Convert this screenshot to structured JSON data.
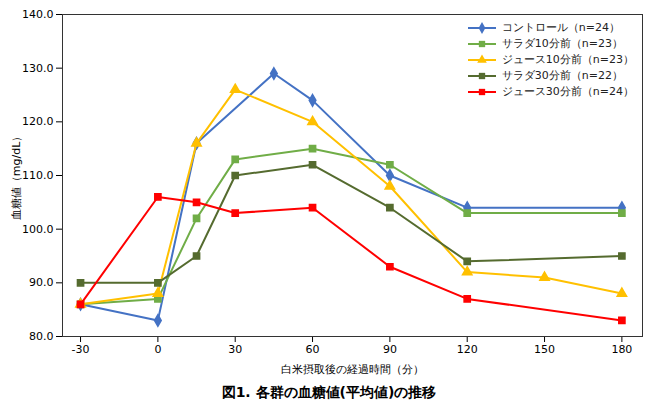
{
  "chart_data": {
    "type": "line",
    "title": "図1. 各群の血糖値(平均値)の推移",
    "xlabel": "白米摂取後の経過時間（分）",
    "ylabel": "血糖値（mg/dL）",
    "series": [
      {
        "name": "コントロール（n=24）",
        "color": "#4472C4",
        "marker": "diamond",
        "x": [
          -30,
          0,
          15,
          45,
          60,
          90,
          120,
          180
        ],
        "values": [
          86,
          83,
          116,
          129,
          124,
          110,
          104,
          104
        ]
      },
      {
        "name": "サラダ10分前（n=23）",
        "color": "#70AD47",
        "marker": "square",
        "x": [
          -30,
          0,
          15,
          30,
          60,
          90,
          120,
          180
        ],
        "values": [
          86,
          87,
          102,
          113,
          115,
          112,
          103,
          103
        ]
      },
      {
        "name": "ジュース10分前（n=23）",
        "color": "#FFC000",
        "marker": "triangle",
        "x": [
          -30,
          0,
          15,
          30,
          60,
          90,
          120,
          150,
          180
        ],
        "values": [
          86,
          88,
          116,
          126,
          120,
          108,
          92,
          91,
          88
        ]
      },
      {
        "name": "サラダ30分前（n=22）",
        "color": "#556B2F",
        "marker": "square",
        "x": [
          -30,
          0,
          15,
          30,
          60,
          90,
          120,
          180
        ],
        "values": [
          90,
          90,
          95,
          110,
          112,
          104,
          94,
          95
        ]
      },
      {
        "name": "ジュース30分前（n=24）",
        "color": "#FF0000",
        "marker": "square",
        "x": [
          -30,
          0,
          15,
          30,
          60,
          90,
          120,
          180
        ],
        "values": [
          86,
          106,
          105,
          103,
          104,
          93,
          87,
          83
        ]
      }
    ],
    "xlim": [
      -37,
      188
    ],
    "xticks": [
      -30,
      0,
      30,
      60,
      90,
      120,
      150,
      180
    ],
    "ylim": [
      80,
      140
    ],
    "yticks": [
      {
        "value": 80,
        "label": "80.0"
      },
      {
        "value": 90,
        "label": "90.0"
      },
      {
        "value": 100,
        "label": "100.0"
      },
      {
        "value": 110,
        "label": "110.0"
      },
      {
        "value": 120,
        "label": "120.0"
      },
      {
        "value": 130,
        "label": "130.0"
      },
      {
        "value": 140,
        "label": "140.0"
      }
    ],
    "legend": "upper right",
    "grid": false
  }
}
